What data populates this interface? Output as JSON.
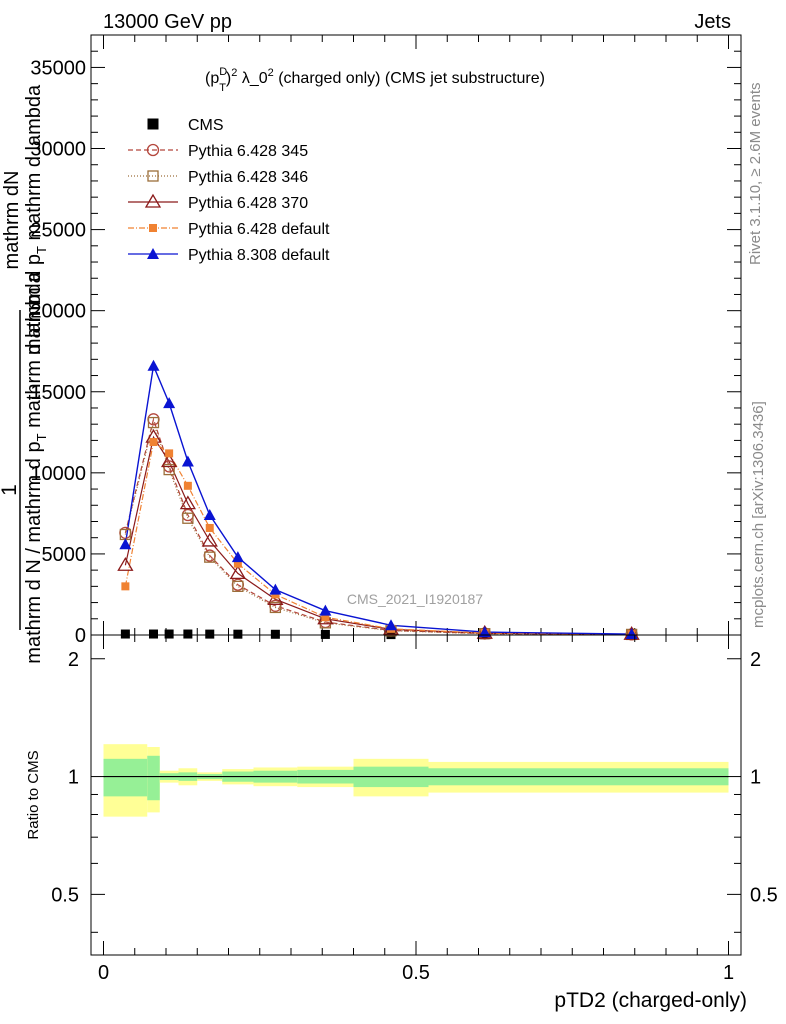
{
  "header": {
    "left_label": "13000 GeV pp",
    "right_label": "Jets"
  },
  "side_labels": {
    "rivet": "Rivet 3.1.10, ≥ 2.6M events",
    "mcplots": "mcplots.cern.ch [arXiv:1306.3436]"
  },
  "watermark": "CMS_2021_I1920187",
  "colors": {
    "cms": "#000000",
    "p345": "#b4463c",
    "p346": "#9c6e3a",
    "p370": "#8b1a1a",
    "p6def": "#f08232",
    "p8def": "#0a14d2",
    "band_inner": "#96f096",
    "band_outer": "#ffff96"
  },
  "chart_data": [
    {
      "panel": "main",
      "type": "line",
      "title": "(p_T^D)^2 λ_0^2 (charged only) (CMS jet substructure)",
      "title_parts": {
        "base": "(p",
        "sub": "T",
        "sup": "D",
        "rest": ")",
        "sq": "2",
        "lam": " λ_0",
        "tail": " (charged only) (CMS jet substructure)"
      },
      "ylabel_lines": [
        "1",
        "mathrm d N / mathrm d p_T mathrm d lambda",
        "mathrm d^2 N",
        "mathrm d p_T mathrm d lambda"
      ],
      "ylabel_parts": {
        "one": "1",
        "num": "mathrm dN",
        "den1": "mathrm d N / mathrm d p",
        "den_sub": "T",
        "den2": " mathrm d lambda",
        "num2": "mathrm d p",
        "num2_sub": "T",
        "num2_rest": " mathrm d lambda"
      },
      "ylim": [
        0,
        37000
      ],
      "xlim": [
        -0.02,
        1.02
      ],
      "yticks": [
        0,
        5000,
        10000,
        15000,
        20000,
        25000,
        30000,
        35000
      ],
      "ytick_labels": [
        "0",
        "5000",
        "10000",
        "15000",
        "20000",
        "25000",
        "30000",
        "35000"
      ],
      "x": [
        0.035,
        0.08,
        0.105,
        0.135,
        0.17,
        0.215,
        0.275,
        0.355,
        0.46,
        0.61,
        0.845
      ],
      "series": [
        {
          "name": "CMS",
          "key": "cms",
          "marker": "square",
          "dash": "none",
          "values": [
            60,
            60,
            60,
            60,
            55,
            50,
            45,
            35,
            25,
            15,
            5
          ]
        },
        {
          "name": "Pythia 6.428 345",
          "key": "p345",
          "marker": "circle-open",
          "dash": "5,3",
          "values": [
            6300,
            13300,
            10400,
            7400,
            4900,
            3100,
            1800,
            800,
            280,
            90,
            40
          ]
        },
        {
          "name": "Pythia 6.428 346",
          "key": "p346",
          "marker": "square-open",
          "dash": "1,2",
          "values": [
            6200,
            13100,
            10200,
            7200,
            4800,
            3000,
            1700,
            750,
            260,
            80,
            35
          ]
        },
        {
          "name": "Pythia 6.428 370",
          "key": "p370",
          "marker": "triangle-open",
          "dash": "none",
          "values": [
            4300,
            12200,
            10700,
            8100,
            5800,
            3800,
            2200,
            1000,
            350,
            110,
            45
          ]
        },
        {
          "name": "Pythia 6.428 default",
          "key": "p6def",
          "marker": "square-small",
          "dash": "6,2,1,2",
          "values": [
            3000,
            11900,
            11200,
            9200,
            6600,
            4400,
            2500,
            1100,
            380,
            120,
            50
          ]
        },
        {
          "name": "Pythia 8.308 default",
          "key": "p8def",
          "marker": "triangle",
          "dash": "none",
          "values": [
            5600,
            16600,
            14300,
            10700,
            7400,
            4800,
            2800,
            1500,
            600,
            180,
            60
          ]
        }
      ]
    },
    {
      "panel": "ratio",
      "type": "area",
      "ylabel": "Ratio to CMS",
      "xlabel": "pTD2 (charged-only)",
      "ylim": [
        0.35,
        2.3
      ],
      "xticks": [
        0,
        0.5,
        1
      ],
      "xtick_labels": [
        "0",
        "0.5",
        "1"
      ],
      "yticks": [
        0.5,
        1,
        2
      ],
      "ytick_labels": [
        "0.5",
        "1",
        "2"
      ],
      "bins": [
        0,
        0.07,
        0.09,
        0.12,
        0.15,
        0.19,
        0.24,
        0.31,
        0.4,
        0.52,
        0.7,
        1.0
      ],
      "inner_err": [
        0.11,
        0.13,
        0.02,
        0.025,
        0.015,
        0.03,
        0.035,
        0.04,
        0.06,
        0.05,
        0.05
      ],
      "outer_err": [
        0.21,
        0.19,
        0.035,
        0.05,
        0.025,
        0.045,
        0.055,
        0.06,
        0.11,
        0.09,
        0.09
      ],
      "reference": 1
    }
  ]
}
